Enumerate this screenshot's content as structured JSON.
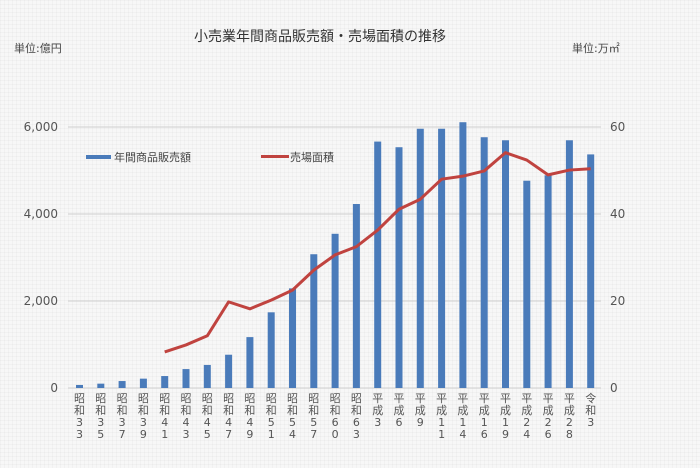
{
  "title": "小売業年間商品販売額・売場面積の推移",
  "units": {
    "left": "単位:億円",
    "right": "単位:万㎡"
  },
  "legend": {
    "bar": "年間商品販売額",
    "line": "売場面積"
  },
  "colors": {
    "bar": "#4a7bba",
    "line": "#c0433f",
    "grid": "#cfcfcf"
  },
  "chart_data": {
    "type": "bar",
    "title": "小売業年間商品販売額・売場面積の推移",
    "xlabel": "",
    "ylabel": "単位:億円",
    "y2label": "単位:万㎡",
    "ylim": [
      0,
      6000
    ],
    "y2lim": [
      0,
      60
    ],
    "yticks": [
      "0",
      "2,000",
      "4,000",
      "6,000"
    ],
    "y2ticks": [
      "0",
      "20",
      "40",
      "60"
    ],
    "grid": true,
    "legend_position": "top-left inside",
    "categories": [
      "昭和33",
      "昭和35",
      "昭和37",
      "昭和39",
      "昭和41",
      "昭和43",
      "昭和45",
      "昭和47",
      "昭和49",
      "昭和51",
      "昭和54",
      "昭和57",
      "昭和60",
      "昭和63",
      "平成3",
      "平成6",
      "平成9",
      "平成11",
      "平成14",
      "平成16",
      "平成19",
      "平成24",
      "平成26",
      "平成28",
      "令和3"
    ],
    "series": [
      {
        "name": "年間商品販売額",
        "type": "bar",
        "axis": "left",
        "values": [
          70,
          100,
          160,
          215,
          275,
          435,
          530,
          765,
          1170,
          1740,
          2290,
          3075,
          3545,
          4230,
          5665,
          5535,
          5960,
          5960,
          6110,
          5765,
          5695,
          4765,
          4890,
          5695,
          5370
        ]
      },
      {
        "name": "売場面積",
        "type": "line",
        "axis": "right",
        "values": [
          null,
          null,
          null,
          null,
          8.3,
          9.9,
          12.0,
          19.8,
          18.2,
          20.2,
          22.5,
          27.1,
          30.6,
          32.5,
          36.3,
          41.1,
          43.4,
          48.0,
          48.7,
          49.9,
          54.1,
          52.4,
          49.0,
          50.1,
          50.4
        ]
      }
    ]
  }
}
